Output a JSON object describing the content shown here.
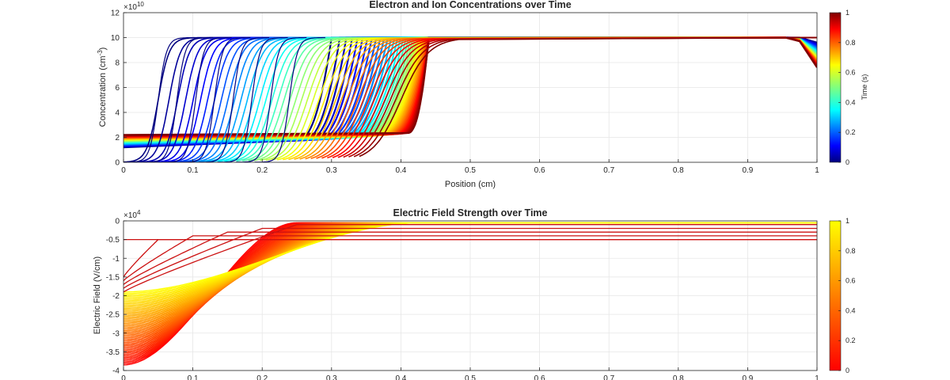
{
  "chart_data": [
    {
      "type": "line",
      "title": "Electron and Ion Concentrations over Time",
      "xlabel": "Position (cm)",
      "ylabel_base": "Concentration (cm",
      "ylabel_sup": "-3",
      "ylabel_end": ")",
      "exponent_base": "×10",
      "exponent_power": "10",
      "xlim": [
        0,
        1
      ],
      "ylim": [
        0,
        12
      ],
      "xticks": [
        "0",
        "0.1",
        "0.2",
        "0.3",
        "0.4",
        "0.5",
        "0.6",
        "0.7",
        "0.8",
        "0.9",
        "1"
      ],
      "yticks": [
        "0",
        "2",
        "4",
        "6",
        "8",
        "10",
        "12"
      ],
      "grid": true,
      "colorbar": {
        "label": "Time (s)",
        "colormap": "jet",
        "ticks": [
          "0",
          "0.2",
          "0.4",
          "0.6",
          "0.8",
          "1"
        ],
        "range": [
          0,
          1
        ]
      },
      "series": [
        {
          "kind": "electron-fronts",
          "front_positions_start": [
            0.05,
            0.4
          ],
          "rise_width": 0.008,
          "upper_plateau": 10,
          "lower_plateau": 0,
          "curves": 40
        },
        {
          "kind": "ion-profiles",
          "plateau": 10,
          "ramp_low_start": 1.6,
          "ramp_low_end": 2.2,
          "ramp_start_x": 0.25,
          "ramp_end_x": 0.44,
          "cathode_dip": 7.6,
          "curves": 40
        }
      ]
    },
    {
      "type": "line",
      "title": "Electric Field Strength over Time",
      "xlabel": "",
      "ylabel": "Electric Field (V/cm)",
      "exponent_base": "×10",
      "exponent_power": "4",
      "xlim": [
        0,
        1
      ],
      "ylim": [
        -4,
        0
      ],
      "xticks": [
        "0",
        "0.1",
        "0.2",
        "0.3",
        "0.4",
        "0.5",
        "0.6",
        "0.7",
        "0.8",
        "0.9",
        "1"
      ],
      "yticks": [
        "0",
        "-0.5",
        "-1",
        "-1.5",
        "-2",
        "-2.5",
        "-3",
        "-3.5",
        "-4"
      ],
      "grid": true,
      "colorbar": {
        "colormap": "autumn",
        "ticks": [
          "0",
          "0.2",
          "0.4",
          "0.6",
          "0.8",
          "1"
        ],
        "range": [
          0,
          1
        ]
      },
      "series": [
        {
          "kind": "field-profiles",
          "field_at_origin_range": [
            -3.85,
            -1.9
          ],
          "field_flat_level": -0.05,
          "knee_x_range": [
            0.25,
            0.43
          ],
          "curves": 50
        },
        {
          "kind": "early-field-profiles",
          "levels": [
            -0.5,
            -0.4,
            -0.3,
            -0.2,
            -0.1
          ],
          "field_at_origin": [
            -1.5,
            -1.9
          ],
          "knee_x": [
            0.05,
            0.1,
            0.15,
            0.2,
            0.25
          ]
        }
      ]
    }
  ]
}
